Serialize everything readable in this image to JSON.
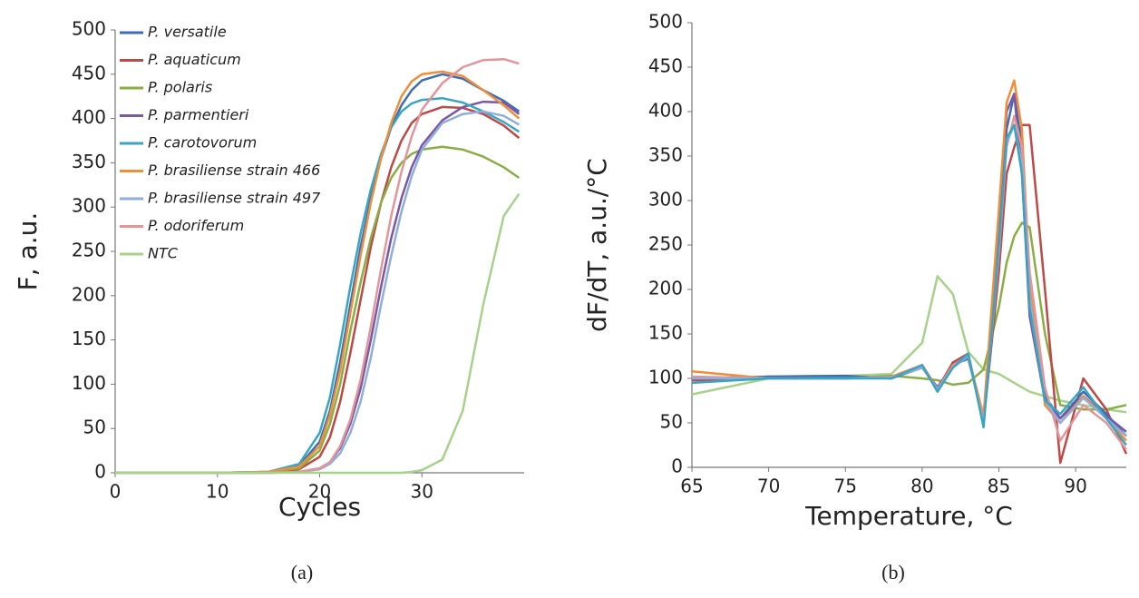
{
  "chart_data": [
    {
      "type": "line",
      "caption": "(a)",
      "xlabel": "Cycles",
      "ylabel": "F, a.u.",
      "xlim": [
        0,
        40
      ],
      "xticks": [
        0,
        10,
        20,
        30
      ],
      "ylim": [
        0,
        500
      ],
      "yticks": [
        0,
        50,
        100,
        150,
        200,
        250,
        300,
        350,
        400,
        450,
        500
      ],
      "legend": "upper left",
      "x": [
        0,
        10,
        15,
        18,
        20,
        21,
        22,
        23,
        24,
        25,
        26,
        27,
        28,
        29,
        30,
        32,
        34,
        36,
        38,
        39.5
      ],
      "series": [
        {
          "name": "P. versatile",
          "color": "#3e6db3",
          "values": [
            0,
            0,
            1,
            8,
            35,
            70,
            125,
            190,
            255,
            310,
            355,
            390,
            415,
            432,
            443,
            450,
            445,
            432,
            420,
            408
          ]
        },
        {
          "name": "P. aquaticum",
          "color": "#be4a47",
          "values": [
            0,
            0,
            0,
            4,
            18,
            40,
            80,
            135,
            195,
            255,
            305,
            345,
            375,
            395,
            405,
            413,
            412,
            405,
            392,
            378
          ]
        },
        {
          "name": "P. polaris",
          "color": "#8aae45",
          "values": [
            0,
            0,
            1,
            5,
            25,
            55,
            100,
            160,
            215,
            265,
            305,
            333,
            350,
            360,
            365,
            368,
            365,
            357,
            345,
            333
          ]
        },
        {
          "name": "P. parmentieri",
          "color": "#7a58a5",
          "values": [
            0,
            0,
            0,
            1,
            5,
            12,
            28,
            55,
            95,
            150,
            210,
            265,
            310,
            345,
            370,
            398,
            413,
            419,
            418,
            405
          ]
        },
        {
          "name": "P. carotovorum",
          "color": "#3aa5c3",
          "values": [
            0,
            0,
            1,
            10,
            45,
            85,
            145,
            210,
            270,
            320,
            360,
            390,
            408,
            417,
            421,
            423,
            418,
            408,
            396,
            385
          ]
        },
        {
          "name": "P. brasiliense strain 466",
          "color": "#f08e39",
          "values": [
            0,
            0,
            1,
            7,
            30,
            65,
            115,
            180,
            245,
            305,
            355,
            395,
            425,
            442,
            450,
            453,
            448,
            432,
            415,
            400
          ]
        },
        {
          "name": "P. brasiliense strain 497",
          "color": "#8eaedc",
          "values": [
            0,
            0,
            0,
            1,
            4,
            10,
            22,
            45,
            80,
            130,
            190,
            245,
            295,
            335,
            365,
            395,
            405,
            408,
            403,
            393
          ]
        },
        {
          "name": "P. odoriferum",
          "color": "#e2969a",
          "values": [
            0,
            0,
            0,
            1,
            5,
            12,
            30,
            60,
            105,
            165,
            230,
            290,
            340,
            380,
            410,
            440,
            458,
            466,
            467,
            462
          ]
        },
        {
          "name": "NTC",
          "color": "#a8d18c",
          "values": [
            0,
            0,
            0,
            0,
            0,
            0,
            0,
            0,
            0,
            0,
            0,
            0,
            0,
            1,
            3,
            15,
            70,
            190,
            290,
            315
          ]
        }
      ]
    },
    {
      "type": "line",
      "caption": "(b)",
      "xlabel": "Temperature, °C",
      "ylabel": "dF/dT, a.u./°C",
      "xlim": [
        65,
        93.3
      ],
      "xticks": [
        65,
        70,
        75,
        80,
        85,
        90
      ],
      "ylim": [
        0,
        500
      ],
      "yticks": [
        0,
        50,
        100,
        150,
        200,
        250,
        300,
        350,
        400,
        450,
        500
      ],
      "x": [
        65,
        70,
        75,
        78,
        80,
        81,
        82,
        83,
        84,
        85,
        85.5,
        86,
        86.5,
        87,
        88,
        89,
        90.5,
        92,
        93.3
      ],
      "series": [
        {
          "color": "#a8d18c",
          "values": [
            82,
            100,
            103,
            105,
            140,
            215,
            195,
            130,
            110,
            105,
            100,
            95,
            90,
            85,
            80,
            75,
            70,
            65,
            62
          ]
        },
        {
          "color": "#8aae45",
          "values": [
            95,
            102,
            100,
            103,
            100,
            98,
            93,
            95,
            110,
            180,
            230,
            260,
            275,
            270,
            150,
            70,
            65,
            65,
            70
          ]
        },
        {
          "color": "#be4a47",
          "values": [
            98,
            100,
            102,
            100,
            115,
            88,
            118,
            128,
            50,
            220,
            330,
            360,
            385,
            385,
            200,
            5,
            100,
            65,
            15
          ]
        },
        {
          "color": "#3e6db3",
          "values": [
            100,
            102,
            103,
            100,
            112,
            90,
            115,
            122,
            55,
            260,
            380,
            420,
            360,
            200,
            80,
            55,
            85,
            60,
            35
          ]
        },
        {
          "color": "#7a58a5",
          "values": [
            100,
            101,
            100,
            102,
            112,
            90,
            115,
            126,
            52,
            270,
            400,
            420,
            330,
            170,
            75,
            55,
            80,
            58,
            40
          ]
        },
        {
          "color": "#f08e39",
          "values": [
            108,
            100,
            100,
            102,
            115,
            88,
            115,
            125,
            58,
            290,
            410,
            435,
            380,
            210,
            70,
            50,
            80,
            55,
            30
          ]
        },
        {
          "color": "#e2969a",
          "values": [
            102,
            100,
            100,
            101,
            113,
            86,
            114,
            127,
            50,
            240,
            360,
            395,
            360,
            220,
            90,
            30,
            70,
            50,
            20
          ]
        },
        {
          "color": "#8eaedc",
          "values": [
            100,
            100,
            100,
            101,
            112,
            88,
            112,
            125,
            48,
            245,
            365,
            385,
            340,
            190,
            75,
            50,
            78,
            55,
            35
          ]
        },
        {
          "color": "#3aa5c3",
          "values": [
            95,
            100,
            100,
            100,
            115,
            85,
            112,
            128,
            45,
            250,
            370,
            385,
            330,
            180,
            75,
            60,
            90,
            55,
            25
          ]
        }
      ]
    }
  ]
}
